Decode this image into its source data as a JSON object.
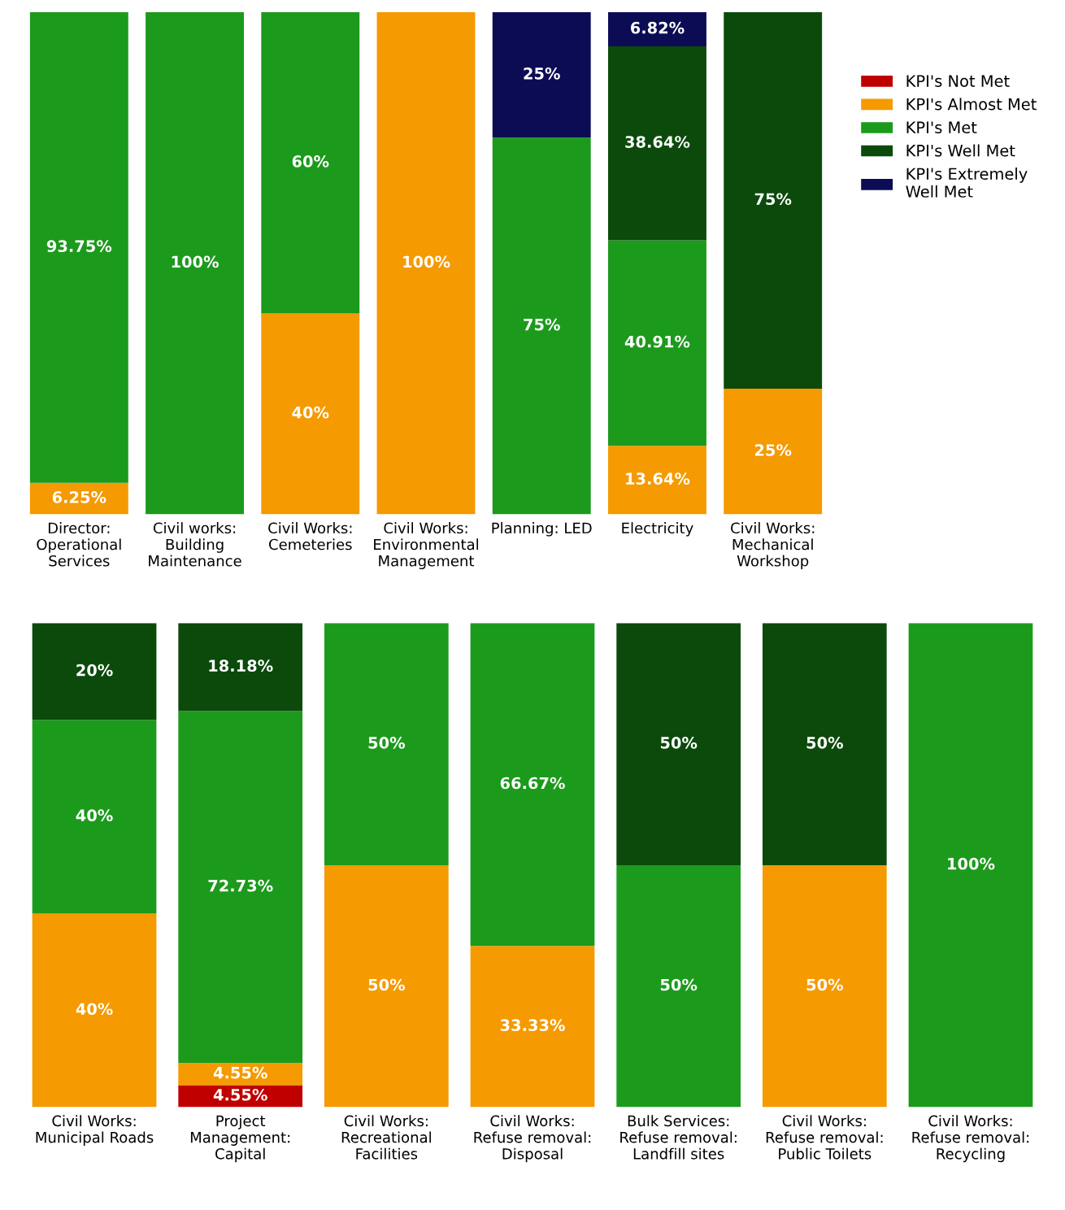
{
  "chart_data": [
    {
      "type": "bar",
      "stacked": true,
      "legend": "right",
      "tick_labels": "x",
      "ylim": [
        0,
        100
      ],
      "categories": [
        "Director:\nOperational\nServices",
        "Civil works:\nBuilding\nMaintenance",
        "Civil Works:\nCemeteries",
        "Civil Works:\nEnvironmental\nManagement",
        "Planning: LED",
        "Electricity",
        "Civil Works:\nMechanical\nWorkshop"
      ],
      "series": [
        {
          "name": "KPI's Not Met",
          "color": "#c00000",
          "values": [
            null,
            null,
            null,
            null,
            null,
            null,
            null
          ],
          "value_labels": [
            null,
            null,
            null,
            null,
            null,
            null,
            null
          ]
        },
        {
          "name": "KPI's Almost Met",
          "color": "#f59a00",
          "values": [
            6.25,
            null,
            40,
            100,
            null,
            13.64,
            25
          ],
          "value_labels": [
            "6.25%",
            null,
            "40%",
            "100%",
            null,
            "13.64%",
            "25%"
          ]
        },
        {
          "name": "KPI's Met",
          "color": "#1c9a1c",
          "values": [
            93.75,
            100,
            60,
            null,
            75,
            40.91,
            null
          ],
          "value_labels": [
            "93.75%",
            "100%",
            "60%",
            null,
            "75%",
            "40.91%",
            null
          ]
        },
        {
          "name": "KPI's Well Met",
          "color": "#0b4a0b",
          "values": [
            null,
            null,
            null,
            null,
            null,
            38.64,
            75
          ],
          "value_labels": [
            null,
            null,
            null,
            null,
            null,
            "38.64%",
            "75%"
          ]
        },
        {
          "name": "KPI's Extremely\nWell Met",
          "color": "#0c0c55",
          "values": [
            null,
            null,
            null,
            null,
            25,
            6.82,
            null
          ],
          "value_labels": [
            null,
            null,
            null,
            null,
            "25%",
            "6.82%",
            null
          ]
        }
      ]
    },
    {
      "type": "bar",
      "stacked": true,
      "tick_labels": "x",
      "ylim": [
        0,
        100
      ],
      "categories": [
        "Civil Works:\nMunicipal Roads",
        "Project\nManagement:\nCapital",
        "Civil Works:\nRecreational\nFacilities",
        "Civil Works:\nRefuse removal:\nDisposal",
        "Bulk Services:\nRefuse removal:\nLandfill sites",
        "Civil Works:\nRefuse removal:\nPublic Toilets",
        "Civil Works:\nRefuse removal:\nRecycling"
      ],
      "series": [
        {
          "color": "#c00000",
          "values": [
            null,
            4.55,
            null,
            null,
            null,
            null,
            null
          ],
          "value_labels": [
            null,
            "4.55%",
            null,
            null,
            null,
            null,
            null
          ]
        },
        {
          "color": "#f59a00",
          "values": [
            40,
            4.55,
            50,
            33.33,
            null,
            50,
            null
          ],
          "value_labels": [
            "40%",
            "4.55%",
            "50%",
            "33.33%",
            null,
            "50%",
            null
          ]
        },
        {
          "color": "#1c9a1c",
          "values": [
            40,
            72.73,
            50,
            66.67,
            50,
            null,
            100
          ],
          "value_labels": [
            "40%",
            "72.73%",
            "50%",
            "66.67%",
            "50%",
            null,
            "100%"
          ]
        },
        {
          "color": "#0b4a0b",
          "values": [
            20,
            18.18,
            null,
            null,
            50,
            50,
            null
          ],
          "value_labels": [
            "20%",
            "18.18%",
            null,
            null,
            "50%",
            "50%",
            null
          ]
        }
      ]
    }
  ]
}
